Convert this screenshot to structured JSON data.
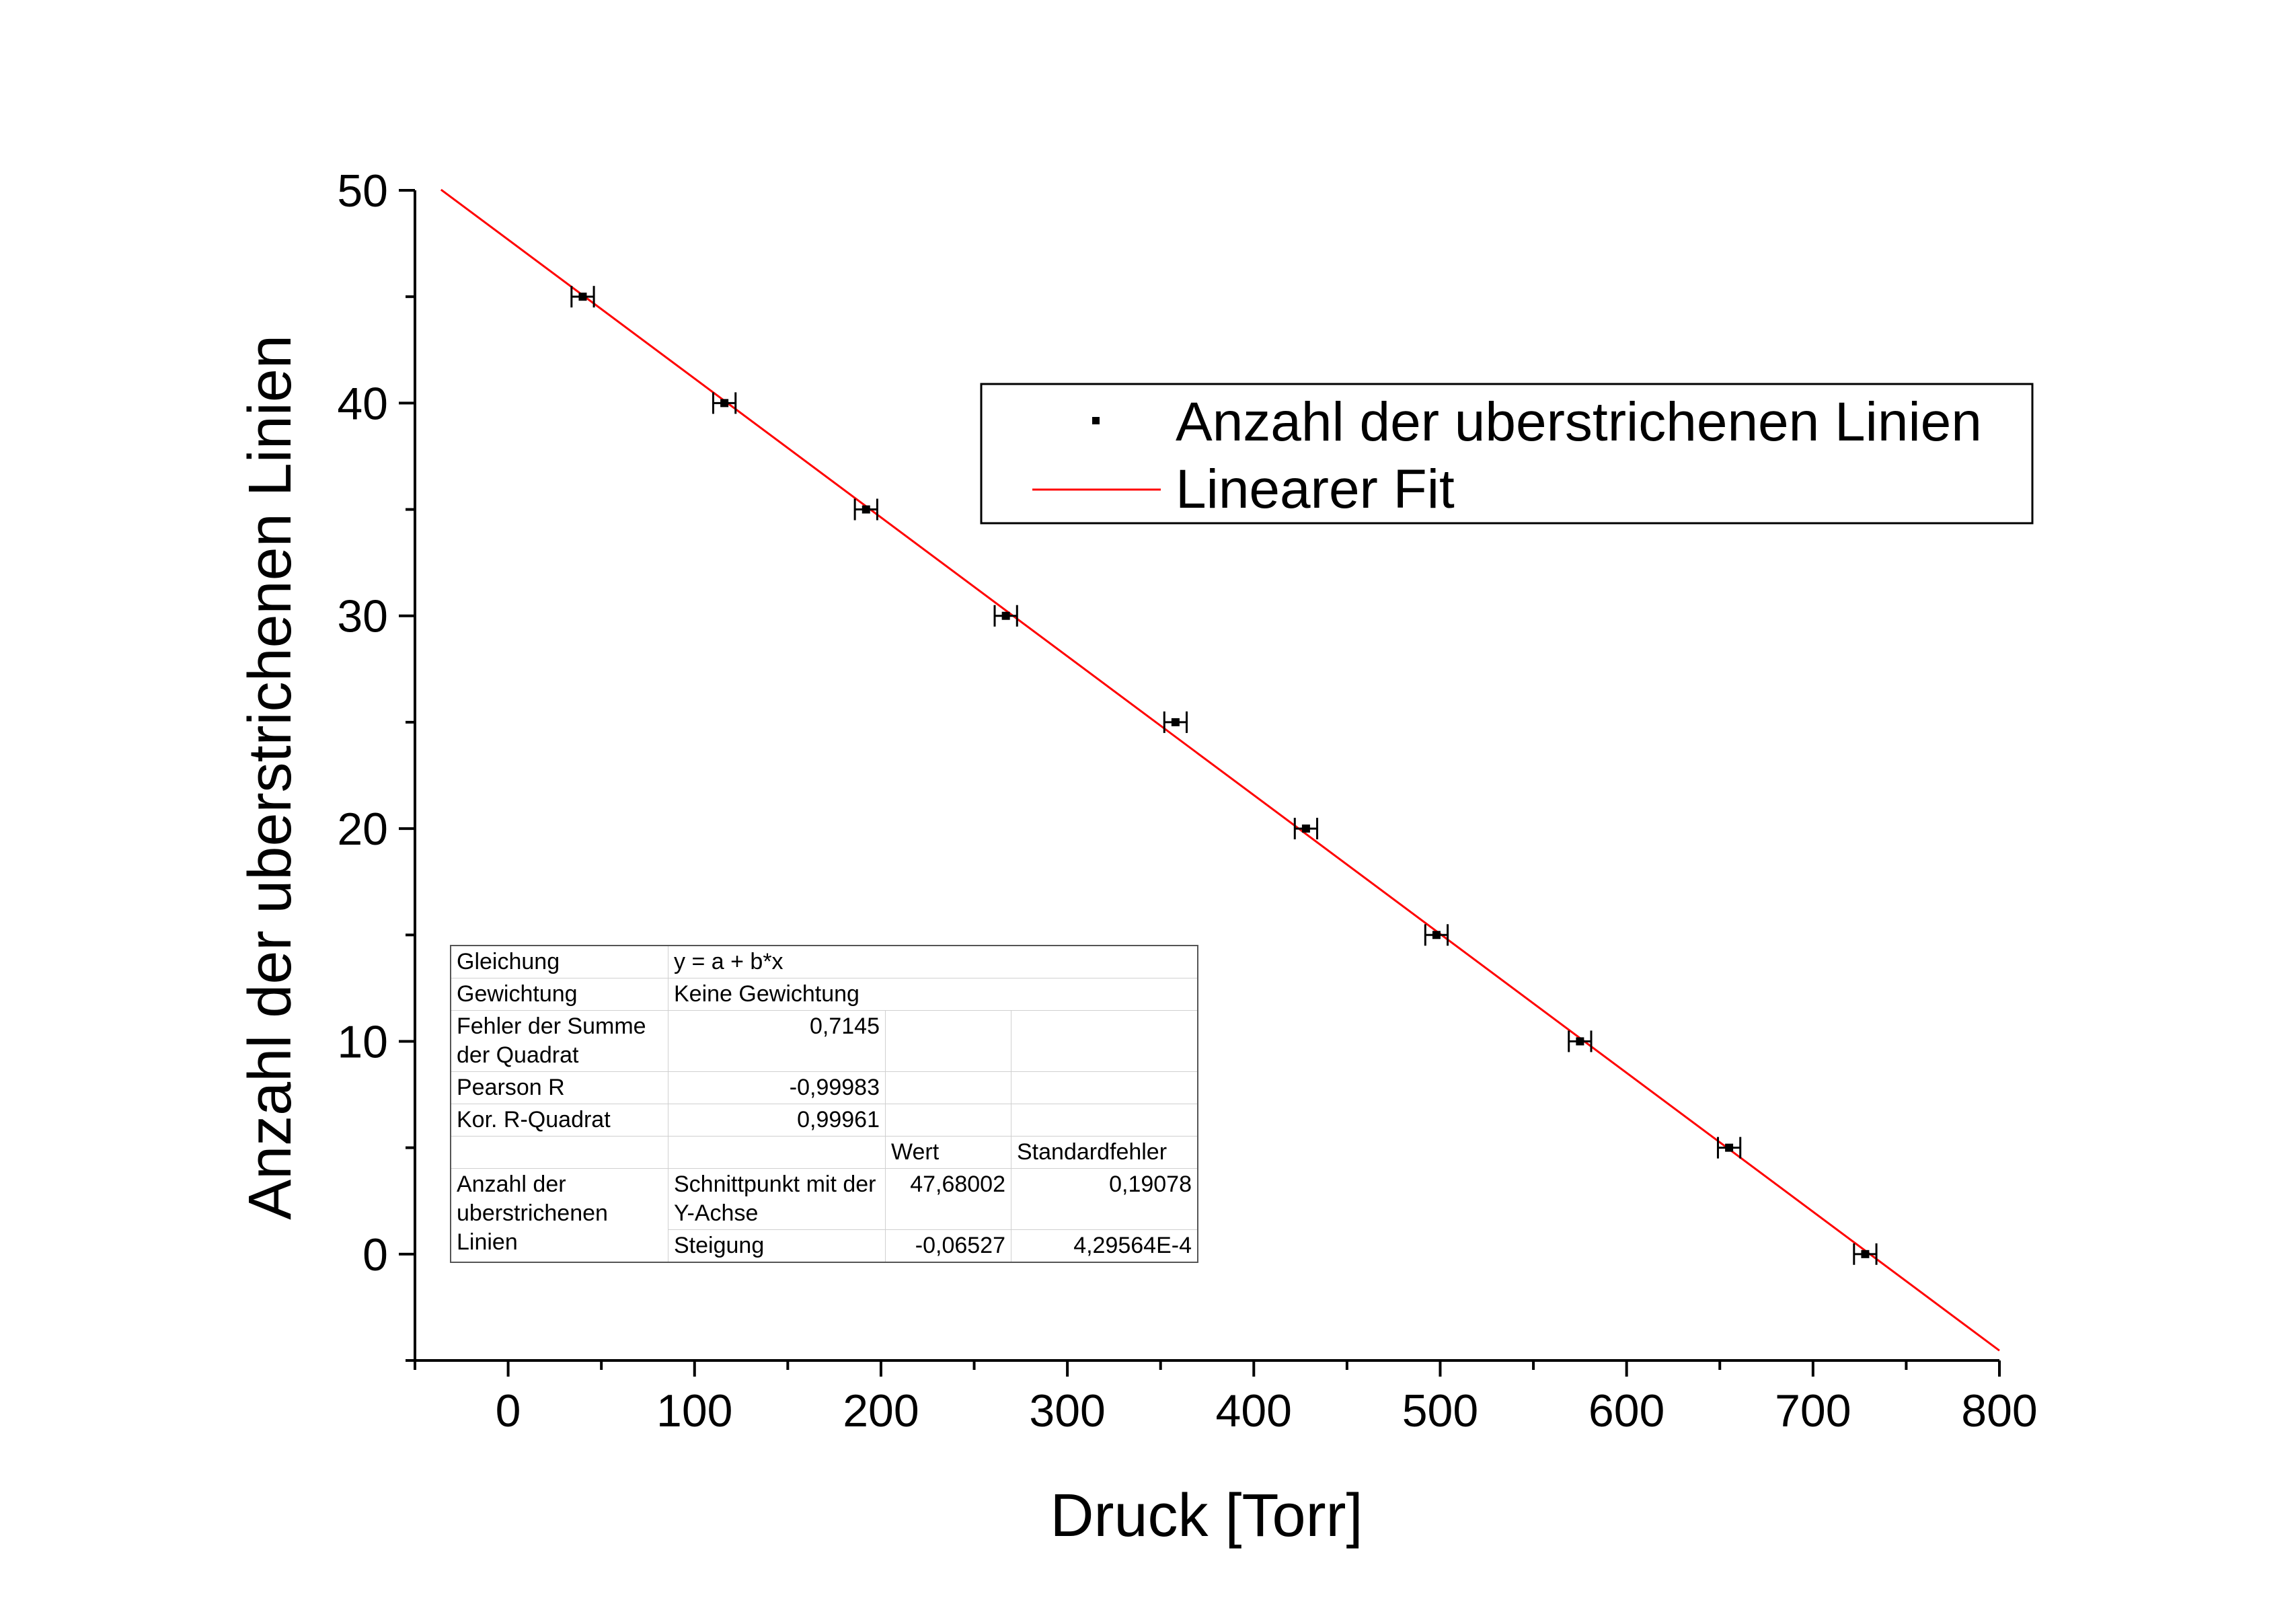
{
  "chart_data": {
    "type": "scatter",
    "xlabel": "Druck [Torr]",
    "ylabel": "Anzahl der uberstrichenen Linien",
    "xlim": [
      -50,
      800
    ],
    "ylim": [
      -5,
      50
    ],
    "x_ticks": [
      0,
      100,
      200,
      300,
      400,
      500,
      600,
      700,
      800
    ],
    "y_ticks": [
      0,
      10,
      20,
      30,
      40,
      50
    ],
    "x_minor_step": 50,
    "y_minor_step": 5,
    "series": [
      {
        "name": "Anzahl der uberstrichenen Linien",
        "type": "scatter",
        "color": "#000000",
        "x": [
          40,
          116,
          192,
          267,
          358,
          428,
          498,
          575,
          655,
          728
        ],
        "y": [
          45,
          40,
          35,
          30,
          25,
          20,
          15,
          10,
          5,
          0
        ],
        "x_error": 6
      },
      {
        "name": "Linearer Fit",
        "type": "line",
        "color": "#ff0000",
        "intercept": 47.68002,
        "slope": -0.06527,
        "x_range": [
          -36,
          800
        ]
      }
    ],
    "legend": {
      "position": "upper-right",
      "items": [
        "Anzahl der uberstrichenen Linien",
        "Linearer Fit"
      ]
    },
    "fit_table": {
      "rows": [
        {
          "label": "Gleichung",
          "value": "y = a + b*x"
        },
        {
          "label": "Gewichtung",
          "value": "Keine Gewichtung"
        },
        {
          "label": "Fehler der Summe der Quadrat",
          "value": "0,7145"
        },
        {
          "label": "Pearson R",
          "value": "-0,99983"
        },
        {
          "label": "Kor. R-Quadrat",
          "value": "0,99961"
        }
      ],
      "header": {
        "wert": "Wert",
        "standardfehler": "Standardfehler"
      },
      "param_group": "Anzahl der uberstrichenen Linien",
      "params": [
        {
          "name": "Schnittpunkt mit der Y-Achse",
          "wert": "47,68002",
          "standardfehler": "0,19078"
        },
        {
          "name": "Steigung",
          "wert": "-0,06527",
          "standardfehler": "4,29564E-4"
        }
      ]
    }
  }
}
